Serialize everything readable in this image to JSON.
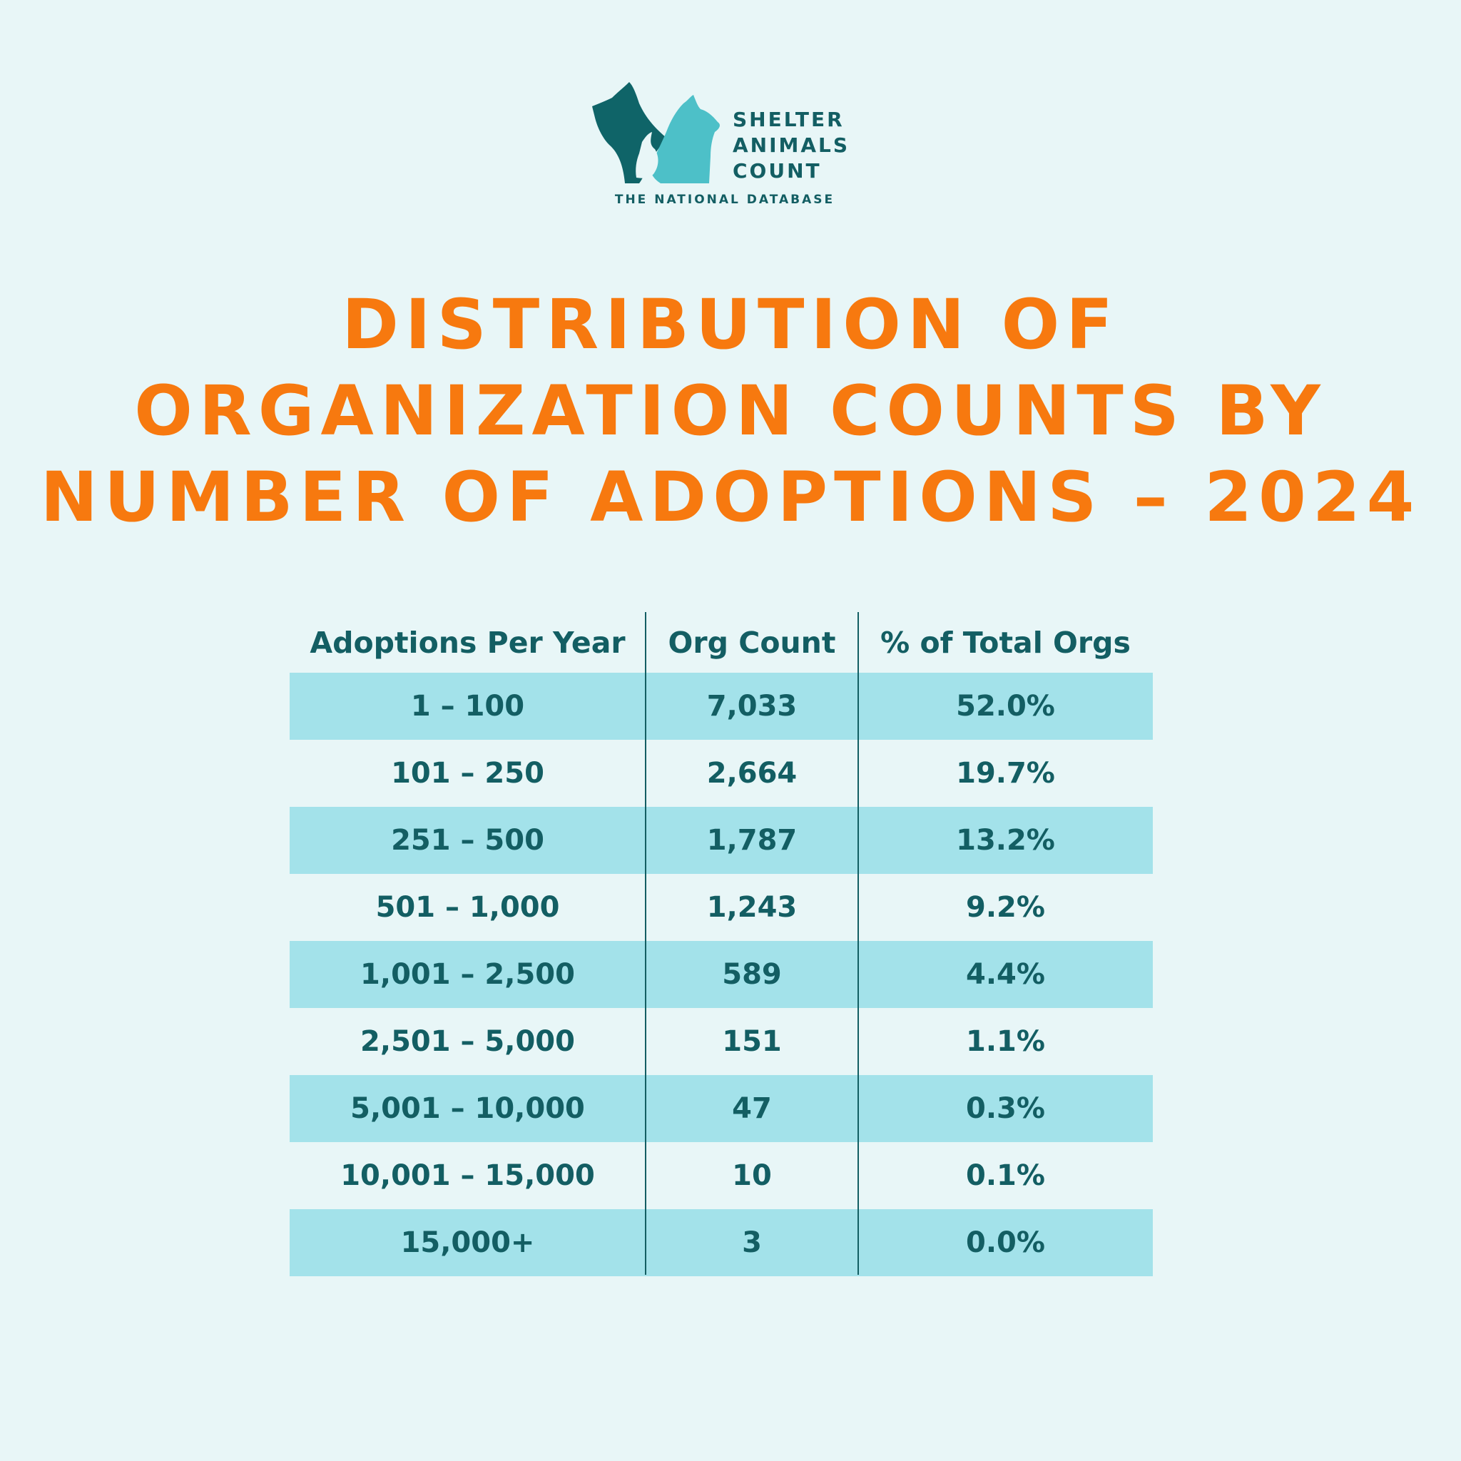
{
  "logo": {
    "lines": [
      "SHELTER",
      "ANIMALS",
      "COUNT"
    ],
    "subtitle": "THE NATIONAL DATABASE",
    "colors": {
      "dark": "#0F6468",
      "light": "#4DC0C8"
    }
  },
  "title": {
    "lines": [
      "DISTRIBUTION OF",
      "ORGANIZATION COUNTS BY",
      "NUMBER OF ADOPTIONS – 2024"
    ]
  },
  "table": {
    "headers": [
      "Adoptions Per Year",
      "Org Count",
      "% of Total Orgs"
    ],
    "rows": [
      [
        "1 – 100",
        "7,033",
        "52.0%"
      ],
      [
        "101 – 250",
        "2,664",
        "19.7%"
      ],
      [
        "251 – 500",
        "1,787",
        "13.2%"
      ],
      [
        "501 – 1,000",
        "1,243",
        "9.2%"
      ],
      [
        "1,001 – 2,500",
        "589",
        "4.4%"
      ],
      [
        "2,501 – 5,000",
        "151",
        "1.1%"
      ],
      [
        "5,001 – 10,000",
        "47",
        "0.3%"
      ],
      [
        "10,001 – 15,000",
        "10",
        "0.1%"
      ],
      [
        "15,000+",
        "3",
        "0.0%"
      ]
    ]
  },
  "colors": {
    "accent": "#F7790F",
    "text": "#135E63",
    "row_shade": "#A3E2EA",
    "background": "#E8F6F7"
  }
}
